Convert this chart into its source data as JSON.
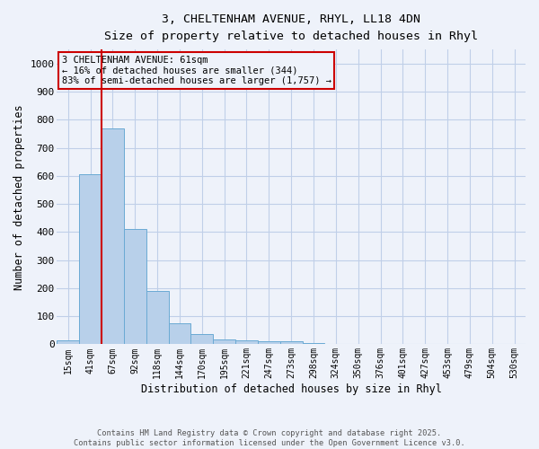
{
  "title_line1": "3, CHELTENHAM AVENUE, RHYL, LL18 4DN",
  "title_line2": "Size of property relative to detached houses in Rhyl",
  "xlabel": "Distribution of detached houses by size in Rhyl",
  "ylabel": "Number of detached properties",
  "bar_labels": [
    "15sqm",
    "41sqm",
    "67sqm",
    "92sqm",
    "118sqm",
    "144sqm",
    "170sqm",
    "195sqm",
    "221sqm",
    "247sqm",
    "273sqm",
    "298sqm",
    "324sqm",
    "350sqm",
    "376sqm",
    "401sqm",
    "427sqm",
    "453sqm",
    "479sqm",
    "504sqm",
    "530sqm"
  ],
  "bar_values": [
    15,
    605,
    770,
    410,
    190,
    75,
    37,
    18,
    15,
    12,
    12,
    5,
    0,
    0,
    0,
    0,
    0,
    0,
    0,
    0,
    0
  ],
  "bar_color": "#b8d0ea",
  "bar_edge_color": "#6aaad4",
  "red_line_x": 2.0,
  "ylim": [
    0,
    1050
  ],
  "yticks": [
    0,
    100,
    200,
    300,
    400,
    500,
    600,
    700,
    800,
    900,
    1000
  ],
  "annotation_text": "3 CHELTENHAM AVENUE: 61sqm\n← 16% of detached houses are smaller (344)\n83% of semi-detached houses are larger (1,757) →",
  "vline_color": "#cc0000",
  "footer_line1": "Contains HM Land Registry data © Crown copyright and database right 2025.",
  "footer_line2": "Contains public sector information licensed under the Open Government Licence v3.0.",
  "bg_color": "#eef2fa",
  "grid_color": "#c0cfe8"
}
